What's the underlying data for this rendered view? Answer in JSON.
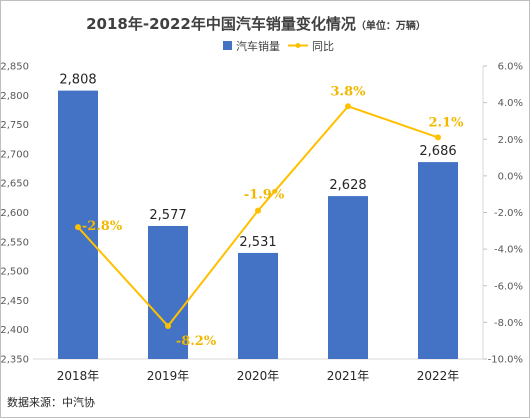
{
  "title": "2018年-2022年中国汽车销量变化情况",
  "title_unit": "（单位：万辆）",
  "source": "数据来源：中汽协",
  "chart_data": {
    "type": "bar",
    "categories": [
      "2018年",
      "2019年",
      "2020年",
      "2021年",
      "2022年"
    ],
    "series": [
      {
        "name": "汽车销量",
        "type": "bar",
        "axis": "left",
        "color": "#4472c4",
        "values": [
          2808,
          2577,
          2531,
          2628,
          2686
        ],
        "labels": [
          "2,808",
          "2,577",
          "2,531",
          "2,628",
          "2,686"
        ]
      },
      {
        "name": "同比",
        "type": "line",
        "axis": "right",
        "color": "#ffc000",
        "values": [
          -2.8,
          -8.2,
          -1.9,
          3.8,
          2.1
        ],
        "labels": [
          "-2.8%",
          "-8.2%",
          "-1.9%",
          "3.8%",
          "2.1%"
        ]
      }
    ],
    "y_left": {
      "ylim": [
        2350,
        2850
      ],
      "ticks": [
        "2,350",
        "2,400",
        "2,450",
        "2,500",
        "2,550",
        "2,600",
        "2,650",
        "2,700",
        "2,750",
        "2,800",
        "2,850"
      ]
    },
    "y_right": {
      "ylim": [
        -10,
        6
      ],
      "ticks": [
        "-10.0%",
        "-8.0%",
        "-6.0%",
        "-4.0%",
        "-2.0%",
        "0.0%",
        "2.0%",
        "4.0%",
        "6.0%"
      ]
    },
    "grid": false,
    "legend": "top-center"
  }
}
